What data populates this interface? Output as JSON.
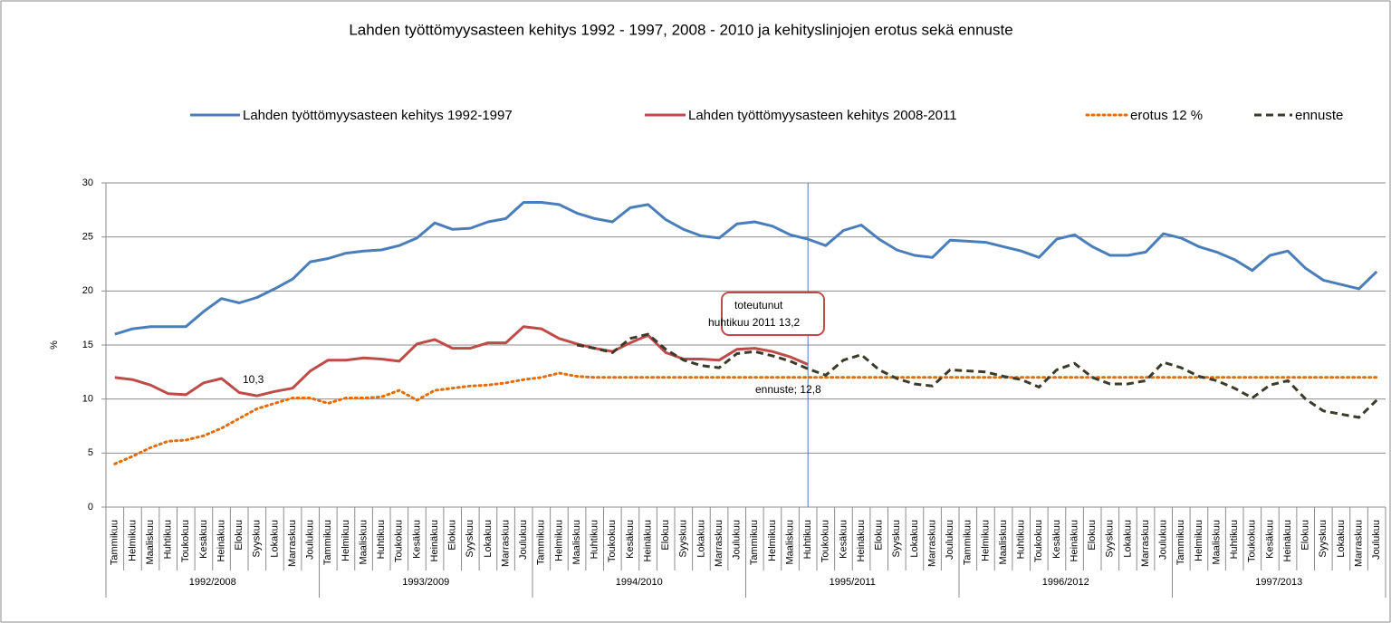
{
  "chart_data": {
    "type": "line",
    "title": "Lahden työttömyysasteen kehitys 1992 - 1997, 2008 - 2010 ja kehityslinjojen erotus sekä ennuste",
    "y_label": "%",
    "categories": [
      "Tammikuu",
      "Helmikuu",
      "Maaliskuu",
      "Huhtikuu",
      "Toukokuu",
      "Kesäkuu",
      "Heinäkuu",
      "Elokuu",
      "Syyskuu",
      "Lokakuu",
      "Marraskuu",
      "Joulukuu",
      "Tammikuu",
      "Helmikuu",
      "Maaliskuu",
      "Huhtikuu",
      "Toukokuu",
      "Kesäkuu",
      "Heinäkuu",
      "Elokuu",
      "Syyskuu",
      "Lokakuu",
      "Marraskuu",
      "Joulukuu",
      "Tammikuu",
      "Helmikuu",
      "Maaliskuu",
      "Huhtikuu",
      "Toukokuu",
      "Kesäkuu",
      "Heinäkuu",
      "Elokuu",
      "Syyskuu",
      "Lokakuu",
      "Marraskuu",
      "Joulukuu",
      "Tammikuu",
      "Helmikuu",
      "Maaliskuu",
      "Huhtikuu",
      "Toukokuu",
      "Kesäkuu",
      "Heinäkuu",
      "Elokuu",
      "Syyskuu",
      "Lokakuu",
      "Marraskuu",
      "Joulukuu",
      "Tammikuu",
      "Helmikuu",
      "Maaliskuu",
      "Huhtikuu",
      "Toukokuu",
      "Kesäkuu",
      "Heinäkuu",
      "Elokuu",
      "Syyskuu",
      "Lokakuu",
      "Marraskuu",
      "Joulukuu",
      "Tammikuu",
      "Helmikuu",
      "Maaliskuu",
      "Huhtikuu",
      "Toukokuu",
      "Kesäkuu",
      "Heinäkuu",
      "Elokuu",
      "Syyskuu",
      "Lokakuu",
      "Marraskuu",
      "Joulukuu"
    ],
    "category_groups": [
      "1992/2008",
      "1993/2009",
      "1994/2010",
      "1995/2011",
      "1996/2012",
      "1997/2013"
    ],
    "series": [
      {
        "name": "Lahden työttömyysasteen kehitys 1992-1997",
        "color": "#4a7ebb",
        "style": "solid",
        "values": [
          16.0,
          16.5,
          16.7,
          16.7,
          16.7,
          18.1,
          19.3,
          18.9,
          19.4,
          20.2,
          21.1,
          22.7,
          23.0,
          23.5,
          23.7,
          23.8,
          24.2,
          24.9,
          26.3,
          25.7,
          25.8,
          26.4,
          26.7,
          28.2,
          28.2,
          28.0,
          27.2,
          26.7,
          26.4,
          27.7,
          28.0,
          26.6,
          25.7,
          25.1,
          24.9,
          26.2,
          26.4,
          26.0,
          25.2,
          24.8,
          24.2,
          25.6,
          26.1,
          24.8,
          23.8,
          23.3,
          23.1,
          24.7,
          24.6,
          24.5,
          24.1,
          23.7,
          23.1,
          24.8,
          25.2,
          24.1,
          23.3,
          23.3,
          23.6,
          25.3,
          24.9,
          24.1,
          23.6,
          22.9,
          21.9,
          23.3,
          23.7,
          22.1,
          21.0,
          20.6,
          20.2,
          21.8
        ]
      },
      {
        "name": "Lahden työttömyysasteen kehitys 2008-2011",
        "color": "#be4b48",
        "style": "solid",
        "values": [
          12.0,
          11.8,
          11.3,
          10.5,
          10.4,
          11.5,
          11.9,
          10.6,
          10.3,
          10.7,
          11.0,
          12.6,
          13.6,
          13.6,
          13.8,
          13.7,
          13.5,
          15.1,
          15.5,
          14.7,
          14.7,
          15.2,
          15.2,
          16.7,
          16.5,
          15.6,
          15.1,
          14.7,
          14.4,
          15.2,
          15.9,
          14.3,
          13.7,
          13.7,
          13.6,
          14.6,
          14.7,
          14.4,
          13.9,
          13.2,
          null,
          null,
          null,
          null,
          null,
          null,
          null,
          null,
          null,
          null,
          null,
          null,
          null,
          null,
          null,
          null,
          null,
          null,
          null,
          null,
          null,
          null,
          null,
          null,
          null,
          null,
          null,
          null,
          null,
          null,
          null,
          null
        ]
      },
      {
        "name": "erotus 12 %",
        "color": "#e46c0a",
        "style": "dotted",
        "values": [
          4.0,
          4.7,
          5.5,
          6.1,
          6.2,
          6.6,
          7.3,
          8.2,
          9.1,
          9.6,
          10.1,
          10.1,
          9.6,
          10.1,
          10.1,
          10.2,
          10.8,
          9.9,
          10.8,
          11.0,
          11.2,
          11.3,
          11.5,
          11.8,
          12.0,
          12.4,
          12.1,
          12.0,
          12.0,
          12.0,
          12.0,
          12.0,
          12.0,
          12.0,
          12.0,
          12.0,
          12.0,
          12.0,
          12.0,
          12.0,
          12.0,
          12.0,
          12.0,
          12.0,
          12.0,
          12.0,
          12.0,
          12.0,
          12.0,
          12.0,
          12.0,
          12.0,
          12.0,
          12.0,
          12.0,
          12.0,
          12.0,
          12.0,
          12.0,
          12.0,
          12.0,
          12.0,
          12.0,
          12.0,
          12.0,
          12.0,
          12.0,
          12.0,
          12.0,
          12.0,
          12.0,
          12.0
        ]
      },
      {
        "name": "ennuste",
        "color": "#3b3b2b",
        "style": "dashed",
        "values": [
          null,
          null,
          null,
          null,
          null,
          null,
          null,
          null,
          null,
          null,
          null,
          null,
          null,
          null,
          null,
          null,
          null,
          null,
          null,
          null,
          null,
          null,
          null,
          null,
          null,
          null,
          15.0,
          14.7,
          14.3,
          15.6,
          16.0,
          14.6,
          13.6,
          13.1,
          12.9,
          14.2,
          14.4,
          14.0,
          13.5,
          12.8,
          12.2,
          13.6,
          14.1,
          12.7,
          11.9,
          11.4,
          11.2,
          12.7,
          12.6,
          12.5,
          12.1,
          11.8,
          11.1,
          12.7,
          13.3,
          12.0,
          11.4,
          11.4,
          11.7,
          13.4,
          12.9,
          12.1,
          11.7,
          11.0,
          10.1,
          11.3,
          11.7,
          10.0,
          8.9,
          8.6,
          8.3,
          9.9
        ]
      }
    ],
    "ylim": [
      0,
      30
    ],
    "yticks": [
      0,
      5,
      10,
      15,
      20,
      25,
      30
    ],
    "grid": true,
    "legend": "top",
    "annotations": [
      "10,3",
      "toteutunut",
      "huhtikuu 2011 13,2",
      "ennuste; 12,8"
    ]
  }
}
